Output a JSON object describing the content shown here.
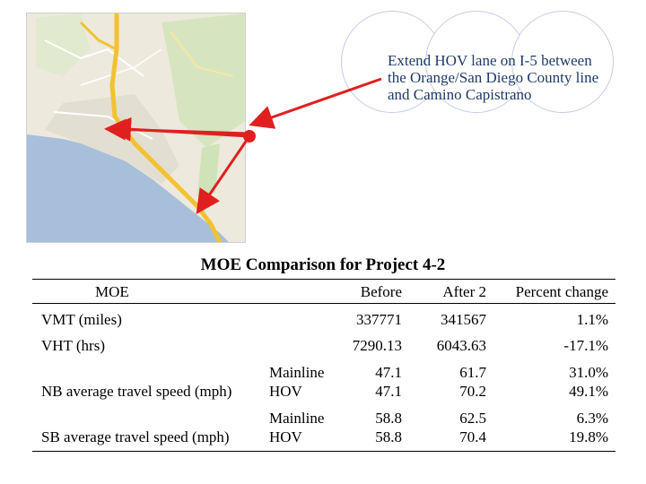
{
  "callout": {
    "lines": [
      "Extend HOV lane on I-5 between",
      "the Orange/San Diego County line",
      "and Camino Capistrano"
    ]
  },
  "map": {
    "marker_color": "#e02020",
    "arrow_color": "#e02020",
    "highway_color": "#f2c230",
    "water_color": "#a7bfda",
    "land_color": "#ede9dd"
  },
  "table": {
    "title": "MOE Comparison for Project 4-2",
    "headers": {
      "moe": "MOE",
      "before": "Before",
      "after": "After 2",
      "change": "Percent change"
    },
    "rows": [
      {
        "measure": "VMT (miles)",
        "sub": "",
        "before": "337771",
        "after": "341567",
        "change": "1.1%"
      },
      {
        "measure": "VHT (hrs)",
        "sub": "",
        "before": "7290.13",
        "after": "6043.63",
        "change": "-17.1%"
      },
      {
        "measure": "",
        "sub": "Mainline",
        "before": "47.1",
        "after": "61.7",
        "change": "31.0%"
      },
      {
        "measure": "NB average travel speed (mph)",
        "sub": "HOV",
        "before": "47.1",
        "after": "70.2",
        "change": "49.1%"
      },
      {
        "measure": "",
        "sub": "Mainline",
        "before": "58.8",
        "after": "62.5",
        "change": "6.3%"
      },
      {
        "measure": "SB average travel speed (mph)",
        "sub": "HOV",
        "before": "58.8",
        "after": "70.4",
        "change": "19.8%"
      }
    ]
  }
}
